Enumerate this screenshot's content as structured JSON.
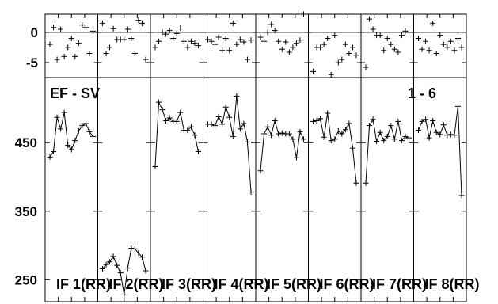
{
  "chart_data": {
    "type": "line",
    "title": "EF - SV",
    "stations_label": "1 - 6",
    "x_unit_ticks": 3,
    "residual_panel": {
      "ylim": [
        -7.5,
        3
      ],
      "yticks": [
        0,
        -5
      ],
      "ytick_labels": [
        "0",
        "-5"
      ],
      "zero_line": true
    },
    "main_panel": {
      "ylim": [
        218,
        545
      ],
      "yticks": [
        450,
        350,
        250
      ],
      "ytick_labels": [
        "450",
        "350",
        "250"
      ]
    },
    "panels": [
      {
        "label": "IF 1(RR)",
        "residuals": [
          -2,
          0.8,
          -4.5,
          0.5,
          -4,
          -2.5,
          -1,
          -4,
          -1.8,
          1.2,
          0.8,
          -3.5,
          0.2
        ],
        "values": [
          429,
          437,
          487,
          470,
          494,
          446,
          440,
          453,
          467,
          475,
          478,
          466,
          459
        ]
      },
      {
        "label": "IF 2(RR)",
        "residuals": [
          1.5,
          -3.5,
          -2.5,
          0.6,
          -1.2,
          -1.2,
          -1.2,
          0.5,
          -1,
          -3.5,
          2,
          1.5,
          -4.5
        ],
        "values": [
          266,
          272,
          276,
          284,
          271,
          260,
          228,
          267,
          296,
          295,
          289,
          283,
          263
        ]
      },
      {
        "label": "IF 3(RR)",
        "residuals": [
          -2.5,
          -1.5,
          0,
          -0.3,
          0.3,
          -1,
          -0.2,
          0.7,
          -1.5,
          -2.5,
          -1.5,
          -1.8,
          -2.2
        ],
        "values": [
          415,
          509,
          498,
          482,
          486,
          481,
          481,
          494,
          468,
          468,
          473,
          461,
          437
        ]
      },
      {
        "label": "IF 4(RR)",
        "residuals": [
          -1.2,
          -1.5,
          -2,
          -0.8,
          -3,
          -1,
          -3,
          1.5,
          -2,
          -1.2,
          -1.6,
          -4.5,
          -1.3
        ],
        "values": [
          477,
          477,
          475,
          488,
          477,
          502,
          487,
          459,
          518,
          470,
          478,
          451,
          378
        ]
      },
      {
        "label": "IF 5(RR)",
        "residuals": [
          -0.8,
          -1.5,
          0,
          1.3,
          0.3,
          -1.5,
          -2.8,
          -1.6,
          -3.3,
          -2.5,
          -1.8,
          -1.3,
          3
        ],
        "values": [
          409,
          463,
          473,
          461,
          482,
          463,
          464,
          463,
          463,
          455,
          428,
          466,
          455
        ]
      },
      {
        "label": "IF 6(RR)",
        "residuals": [
          -6.5,
          -2.5,
          -2.5,
          -2,
          -1,
          -7,
          -0.5,
          -5,
          -4.5,
          -2,
          -3.5,
          -2.5,
          -3.8
        ],
        "values": [
          481,
          482,
          485,
          458,
          493,
          453,
          455,
          467,
          463,
          469,
          478,
          442,
          391
        ]
      },
      {
        "label": "IF 7(RR)",
        "residuals": [
          -5.8,
          2.2,
          0.5,
          -0.5,
          -0.5,
          -3,
          -1,
          -2,
          -2.8,
          -3.3,
          -0.5,
          0.2,
          0
        ],
        "values": [
          391,
          475,
          484,
          452,
          465,
          453,
          459,
          475,
          455,
          481,
          453,
          459,
          457
        ]
      },
      {
        "label": "IF 8(RR)",
        "residuals": [
          -1,
          -2.8,
          -1.5,
          -3,
          1.5,
          -3.5,
          -0.5,
          -2,
          -2.5,
          -1.5,
          -3,
          -1,
          -2.5
        ],
        "values": [
          468,
          481,
          484,
          457,
          482,
          465,
          462,
          476,
          461,
          462,
          461,
          503,
          373
        ]
      }
    ]
  }
}
